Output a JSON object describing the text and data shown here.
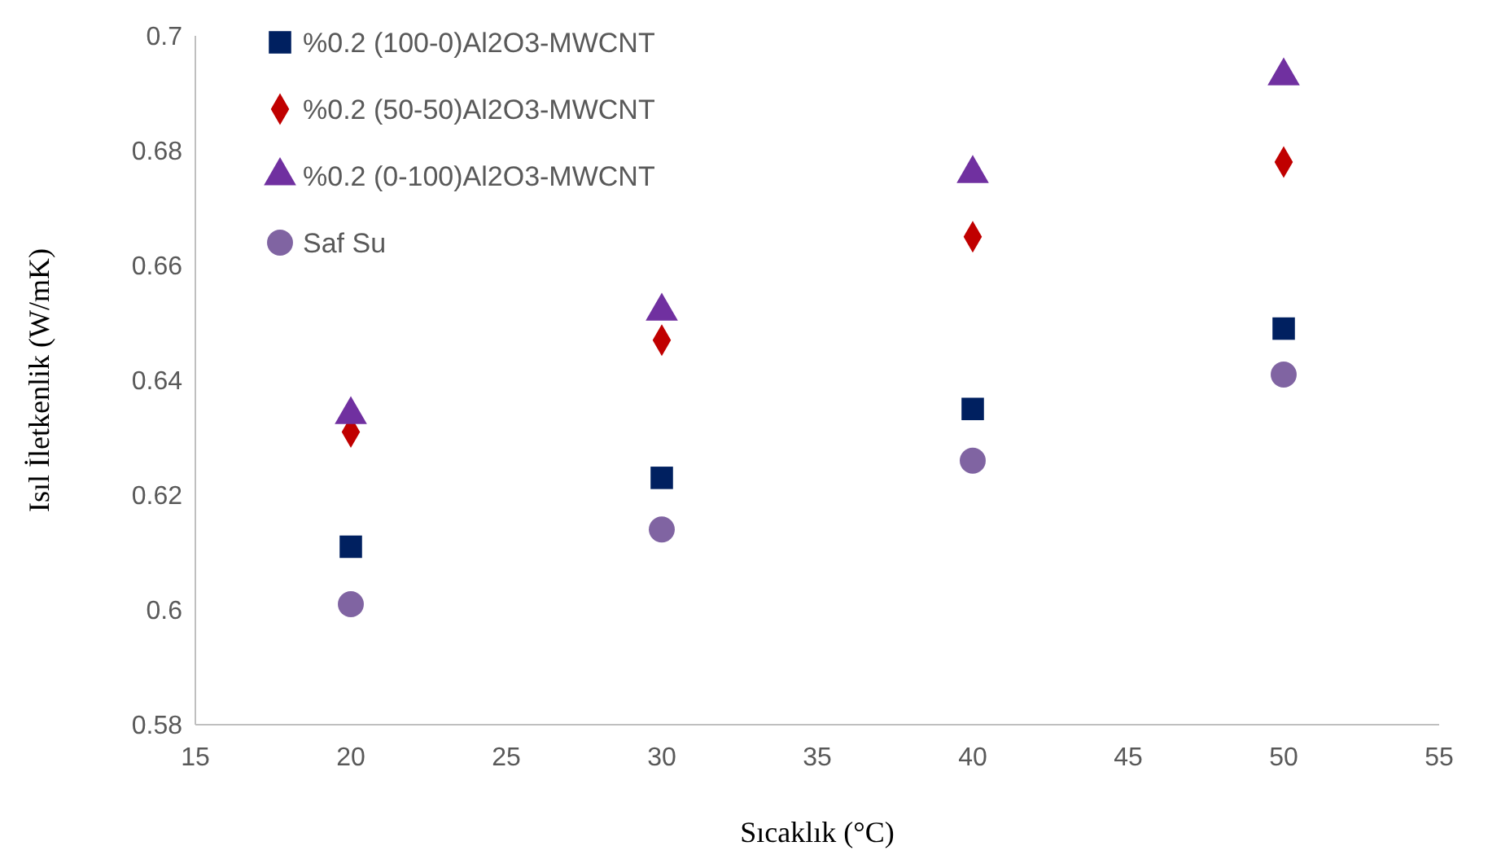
{
  "chart_data": {
    "type": "scatter",
    "xlabel": "Sıcaklık (°C)",
    "ylabel": "Isıl İletkenlik (W/mK)",
    "x": [
      20,
      30,
      40,
      50
    ],
    "series": [
      {
        "name": "%0.2 (100-0)Al2O3-MWCNT",
        "color": "#002060",
        "marker": "square",
        "values": [
          0.611,
          0.623,
          0.635,
          0.649
        ]
      },
      {
        "name": "%0.2 (50-50)Al2O3-MWCNT",
        "color": "#c00000",
        "marker": "diamond",
        "values": [
          0.631,
          0.647,
          0.665,
          0.678
        ]
      },
      {
        "name": "%0.2 (0-100)Al2O3-MWCNT",
        "color": "#7030a0",
        "marker": "triangle",
        "values": [
          0.634,
          0.652,
          0.676,
          0.693
        ]
      },
      {
        "name": "Saf Su",
        "color": "#8064a2",
        "marker": "circle",
        "values": [
          0.601,
          0.614,
          0.626,
          0.641
        ]
      }
    ],
    "xlim": [
      15,
      55
    ],
    "xticks": [
      15,
      20,
      25,
      30,
      35,
      40,
      45,
      50,
      55
    ],
    "ylim": [
      0.58,
      0.7
    ],
    "yticks": [
      0.58,
      0.6,
      0.62,
      0.64,
      0.66,
      0.68,
      0.7
    ],
    "grid": false,
    "legend": "top left"
  }
}
